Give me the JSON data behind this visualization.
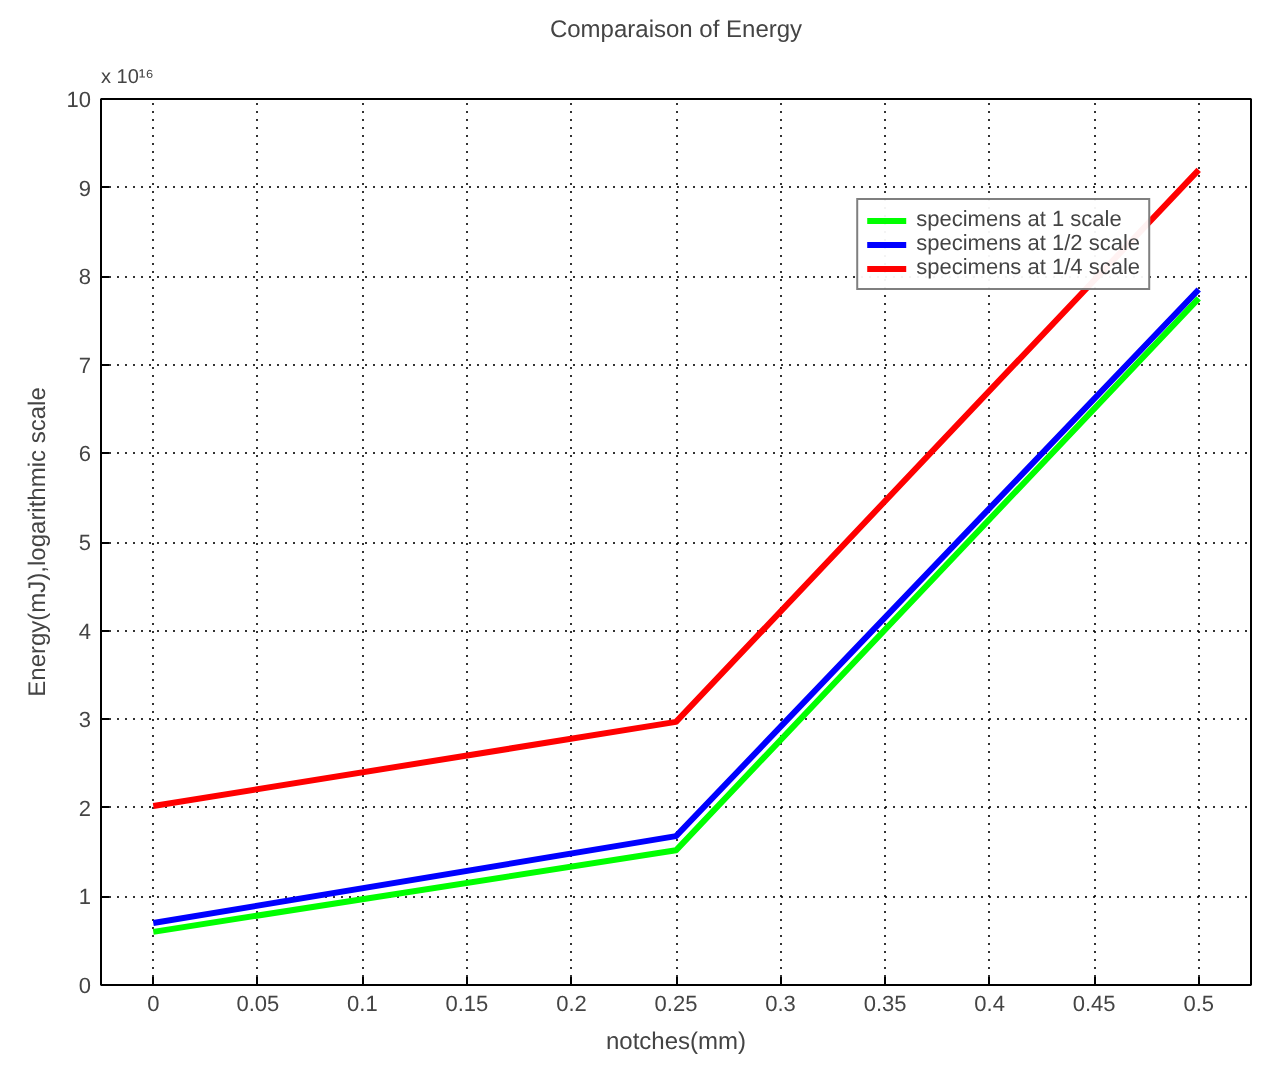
{
  "chart_data": {
    "type": "line",
    "title": "Comparaison of Energy",
    "xlabel": "notches(mm)",
    "ylabel": "Energy(mJ),logarithmic scale",
    "annotations": [
      "x 10¹⁶"
    ],
    "x": [
      0,
      0.25,
      0.5
    ],
    "series": [
      {
        "name": "specimens at 1 scale",
        "color": "#00ff00",
        "values": [
          0.6,
          1.52,
          7.75
        ]
      },
      {
        "name": "specimens at 1/2 scale",
        "color": "#0000ff",
        "values": [
          0.7,
          1.68,
          7.85
        ]
      },
      {
        "name": "specimens at 1/4 scale",
        "color": "#ff0000",
        "values": [
          2.02,
          2.97,
          9.2
        ]
      }
    ],
    "xlim": [
      -0.025,
      0.525
    ],
    "xticks": [
      0,
      0.05,
      0.1,
      0.15,
      0.2,
      0.25,
      0.3,
      0.35,
      0.4,
      0.45,
      0.5
    ],
    "ylim": [
      0,
      10
    ],
    "yticks": [
      0,
      1,
      2,
      3,
      4,
      5,
      6,
      7,
      8,
      9,
      10
    ],
    "grid": true,
    "legend": "top right",
    "line_style": "solid",
    "marker": "none"
  }
}
